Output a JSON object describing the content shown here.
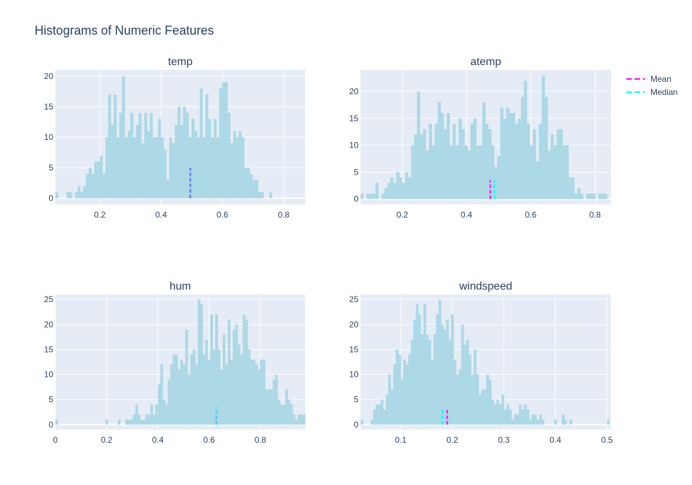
{
  "figure_title": "Histograms of Numeric Features",
  "colors": {
    "bars": "#add8e6",
    "mean": "#ff00ff",
    "median": "#00ffff",
    "plot_bg": "#e5ecf6",
    "text": "#2a3f5f"
  },
  "legend": {
    "items": [
      {
        "label": "Mean",
        "color": "#ff00ff",
        "dash": true
      },
      {
        "label": "Median",
        "color": "#00ffff",
        "dash": true
      }
    ],
    "position": "top-right"
  },
  "chart_data": [
    {
      "type": "bar",
      "title": "temp",
      "xlim": [
        0.055,
        0.87
      ],
      "ylim": [
        -1,
        21
      ],
      "xticks": [
        0.2,
        0.4,
        0.6,
        0.8
      ],
      "yticks": [
        0,
        5,
        10,
        15,
        20
      ],
      "bin_start": 0.055,
      "bin_width": 0.00906,
      "counts": [
        1,
        0,
        0,
        0,
        1,
        1,
        0,
        1,
        2,
        1,
        2,
        4,
        5,
        4,
        6,
        6,
        7,
        4,
        10,
        17,
        12,
        17,
        10,
        14,
        20,
        10,
        11,
        14,
        10,
        12,
        14,
        9,
        14,
        11,
        14,
        10,
        10,
        13,
        10,
        8,
        3,
        10,
        9,
        12,
        15,
        12,
        15,
        14,
        10,
        13,
        11,
        10,
        18,
        10,
        17,
        13,
        10,
        13,
        10,
        18,
        19,
        19,
        14,
        9,
        11,
        10,
        11,
        10,
        5,
        5,
        4,
        3,
        3,
        1,
        1,
        0,
        0,
        1
      ],
      "mean": 0.495,
      "median": 0.498,
      "marker_height": 5
    },
    {
      "type": "bar",
      "title": "atemp",
      "xlim": [
        0.07,
        0.85
      ],
      "ylim": [
        -1,
        24
      ],
      "xticks": [
        0.2,
        0.4,
        0.6,
        0.8
      ],
      "yticks": [
        0,
        5,
        10,
        15,
        20
      ],
      "bin_start": 0.07,
      "bin_width": 0.00925,
      "counts": [
        1,
        0,
        1,
        1,
        1,
        3,
        0,
        1,
        2,
        3,
        4,
        3,
        5,
        4,
        3,
        5,
        4,
        10,
        12,
        20,
        12,
        13,
        9,
        14,
        10,
        14,
        18,
        16,
        13,
        16,
        10,
        14,
        10,
        15,
        13,
        10,
        9,
        14,
        15,
        10,
        10,
        18,
        14,
        13,
        10,
        6,
        8,
        17,
        15,
        17,
        16,
        16,
        14,
        15,
        19,
        22,
        14,
        10,
        13,
        7,
        14,
        23,
        19,
        9,
        12,
        10,
        13,
        13,
        10,
        10,
        4,
        4,
        1,
        2,
        1,
        0,
        1,
        1,
        1,
        0,
        1,
        1,
        1
      ],
      "mean": 0.474,
      "median": 0.487,
      "marker_height": 3.5
    },
    {
      "type": "bar",
      "title": "hum",
      "xlim": [
        0,
        0.975
      ],
      "ylim": [
        -1,
        26
      ],
      "xticks": [
        0,
        0.2,
        0.4,
        0.6,
        0.8
      ],
      "yticks": [
        0,
        5,
        10,
        15,
        20,
        25
      ],
      "bin_start": 0,
      "bin_width": 0.00975,
      "counts": [
        1,
        0,
        0,
        0,
        0,
        0,
        0,
        0,
        0,
        0,
        0,
        0,
        0,
        0,
        0,
        0,
        0,
        0,
        0,
        0,
        1,
        0,
        0,
        0,
        0,
        1,
        0,
        0,
        1,
        1,
        1,
        2,
        4,
        2,
        1,
        1,
        2,
        2,
        4,
        2,
        4,
        8,
        12,
        5,
        4,
        9,
        12,
        14,
        14,
        11,
        13,
        12,
        19,
        10,
        14,
        15,
        12,
        25,
        24,
        14,
        17,
        13,
        22,
        15,
        22,
        15,
        11,
        18,
        12,
        21,
        13,
        19,
        20,
        16,
        14,
        22,
        21,
        15,
        13,
        13,
        12,
        11,
        13,
        13,
        7,
        7,
        7,
        9,
        10,
        5,
        4,
        4,
        7,
        5,
        4,
        2,
        1,
        2,
        2,
        2,
        2
      ],
      "mean": 0.628,
      "median": 0.627,
      "marker_height": 3.5
    },
    {
      "type": "bar",
      "title": "windspeed",
      "xlim": [
        0.022,
        0.508
      ],
      "ylim": [
        -1,
        26
      ],
      "xticks": [
        0.1,
        0.2,
        0.3,
        0.4,
        0.5
      ],
      "yticks": [
        0,
        5,
        10,
        15,
        20,
        25
      ],
      "bin_start": 0.022,
      "bin_width": 0.00488,
      "counts": [
        1,
        0,
        0,
        0,
        1,
        3,
        4,
        4,
        5,
        3,
        6,
        10,
        7,
        12,
        15,
        14,
        9,
        13,
        12,
        14,
        17,
        21,
        24,
        22,
        18,
        24,
        18,
        17,
        13,
        18,
        22,
        25,
        20,
        19,
        21,
        17,
        22,
        13,
        10,
        11,
        20,
        16,
        17,
        14,
        10,
        15,
        10,
        6,
        7,
        7,
        10,
        9,
        5,
        4,
        5,
        4,
        6,
        3,
        4,
        3,
        1,
        2,
        2,
        4,
        3,
        4,
        3,
        1,
        2,
        2,
        1,
        2,
        1,
        0,
        0,
        0,
        0,
        1,
        0,
        0,
        2,
        1,
        0,
        1,
        0,
        0,
        0,
        0,
        0,
        0,
        0,
        0,
        0,
        0,
        0,
        0,
        0,
        0,
        1
      ],
      "mean": 0.19,
      "median": 0.181,
      "marker_height": 3
    }
  ]
}
